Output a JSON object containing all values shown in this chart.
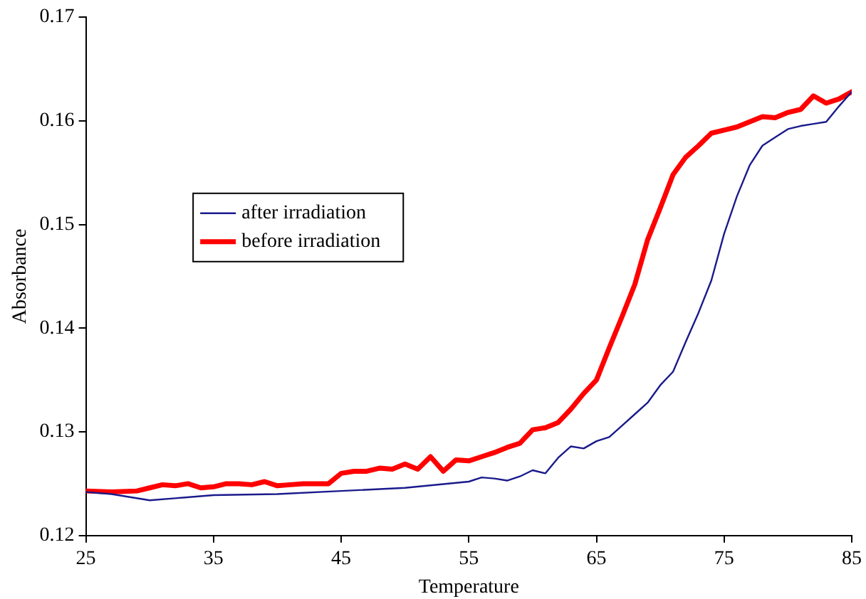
{
  "chart_data": {
    "type": "line",
    "xlabel": "Temperature",
    "ylabel": "Absorbance",
    "xlim": [
      25,
      85
    ],
    "xticks": [
      25,
      35,
      45,
      55,
      65,
      75,
      85
    ],
    "ylim": [
      0.12,
      0.17
    ],
    "yticks": [
      0.12,
      0.13,
      0.14,
      0.15,
      0.16,
      0.17
    ],
    "grid": false,
    "legend": "top left",
    "marker": "none",
    "series": [
      {
        "name": "after irradiation",
        "color": "#1a1a8c",
        "x": [
          25,
          27,
          30,
          32,
          35,
          40,
          45,
          50,
          55,
          56,
          57,
          58,
          59,
          60,
          61,
          62,
          63,
          64,
          65,
          66,
          67,
          68,
          69,
          70,
          71,
          72,
          73,
          74,
          75,
          76,
          77,
          78,
          79,
          80,
          81,
          82,
          83,
          84,
          85
        ],
        "values": [
          0.1242,
          0.124,
          0.1234,
          0.1236,
          0.1239,
          0.124,
          0.1243,
          0.1246,
          0.1252,
          0.1256,
          0.1255,
          0.1253,
          0.1257,
          0.1263,
          0.126,
          0.1275,
          0.1286,
          0.1284,
          0.1291,
          0.1295,
          0.1306,
          0.1317,
          0.1328,
          0.1345,
          0.1358,
          0.1387,
          0.1415,
          0.1446,
          0.1491,
          0.1527,
          0.1557,
          0.1576,
          0.1584,
          0.1592,
          0.1595,
          0.1597,
          0.1599,
          0.1614,
          0.1628
        ]
      },
      {
        "name": "before irradiation",
        "color": "#ff0000",
        "x": [
          25,
          27,
          29,
          30,
          31,
          32,
          33,
          34,
          35,
          36,
          37,
          38,
          39,
          40,
          41,
          42,
          43,
          44,
          45,
          46,
          47,
          48,
          49,
          50,
          51,
          52,
          53,
          54,
          55,
          56,
          57,
          58,
          59,
          60,
          61,
          62,
          63,
          64,
          65,
          66,
          67,
          68,
          69,
          70,
          71,
          72,
          73,
          74,
          75,
          76,
          77,
          78,
          79,
          80,
          81,
          82,
          83,
          84,
          85
        ],
        "values": [
          0.1243,
          0.1242,
          0.1243,
          0.1246,
          0.1249,
          0.1248,
          0.125,
          0.1246,
          0.1247,
          0.125,
          0.125,
          0.1249,
          0.1252,
          0.1248,
          0.1249,
          0.125,
          0.125,
          0.125,
          0.126,
          0.1262,
          0.1262,
          0.1265,
          0.1264,
          0.1269,
          0.1264,
          0.1276,
          0.1262,
          0.1273,
          0.1272,
          0.1276,
          0.128,
          0.1285,
          0.1289,
          0.1302,
          0.1304,
          0.1309,
          0.1322,
          0.1337,
          0.135,
          0.1381,
          0.1411,
          0.1442,
          0.1485,
          0.1516,
          0.1548,
          0.1565,
          0.1576,
          0.1588,
          0.1591,
          0.1594,
          0.1599,
          0.1604,
          0.1603,
          0.1608,
          0.1611,
          0.1624,
          0.1617,
          0.1621,
          0.1628
        ]
      }
    ]
  }
}
